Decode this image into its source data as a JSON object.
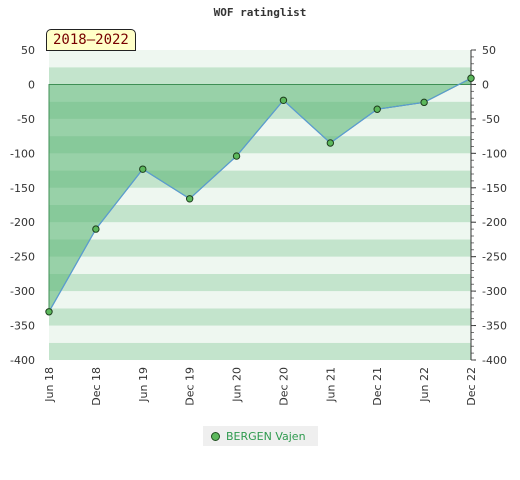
{
  "chart_data": {
    "type": "area",
    "title": "WOF ratinglist",
    "badge": "2018–2022",
    "ylim": [
      -400,
      50
    ],
    "yticks": [
      50,
      0,
      -50,
      -100,
      -150,
      -200,
      -250,
      -300,
      -350,
      -400
    ],
    "categories": [
      "Jun 18",
      "Dec 18",
      "Jun 19",
      "Dec 19",
      "Jun 20",
      "Dec 20",
      "Jun 21",
      "Dec 21",
      "Jun 22",
      "Dec 22"
    ],
    "series": [
      {
        "name": "BERGEN Vajen",
        "values": [
          -330,
          -210,
          -123,
          -166,
          -104,
          -23,
          -85,
          -36,
          -26,
          9
        ]
      }
    ],
    "legend_position": "bottom-center",
    "colors": {
      "area_fill": "#5fb878",
      "line": "#5b9bd5",
      "marker": "#5cb85c",
      "band_dark": "#c3e4cc",
      "band_light": "#eef7f0",
      "legend_text": "#2e9a4e"
    }
  }
}
